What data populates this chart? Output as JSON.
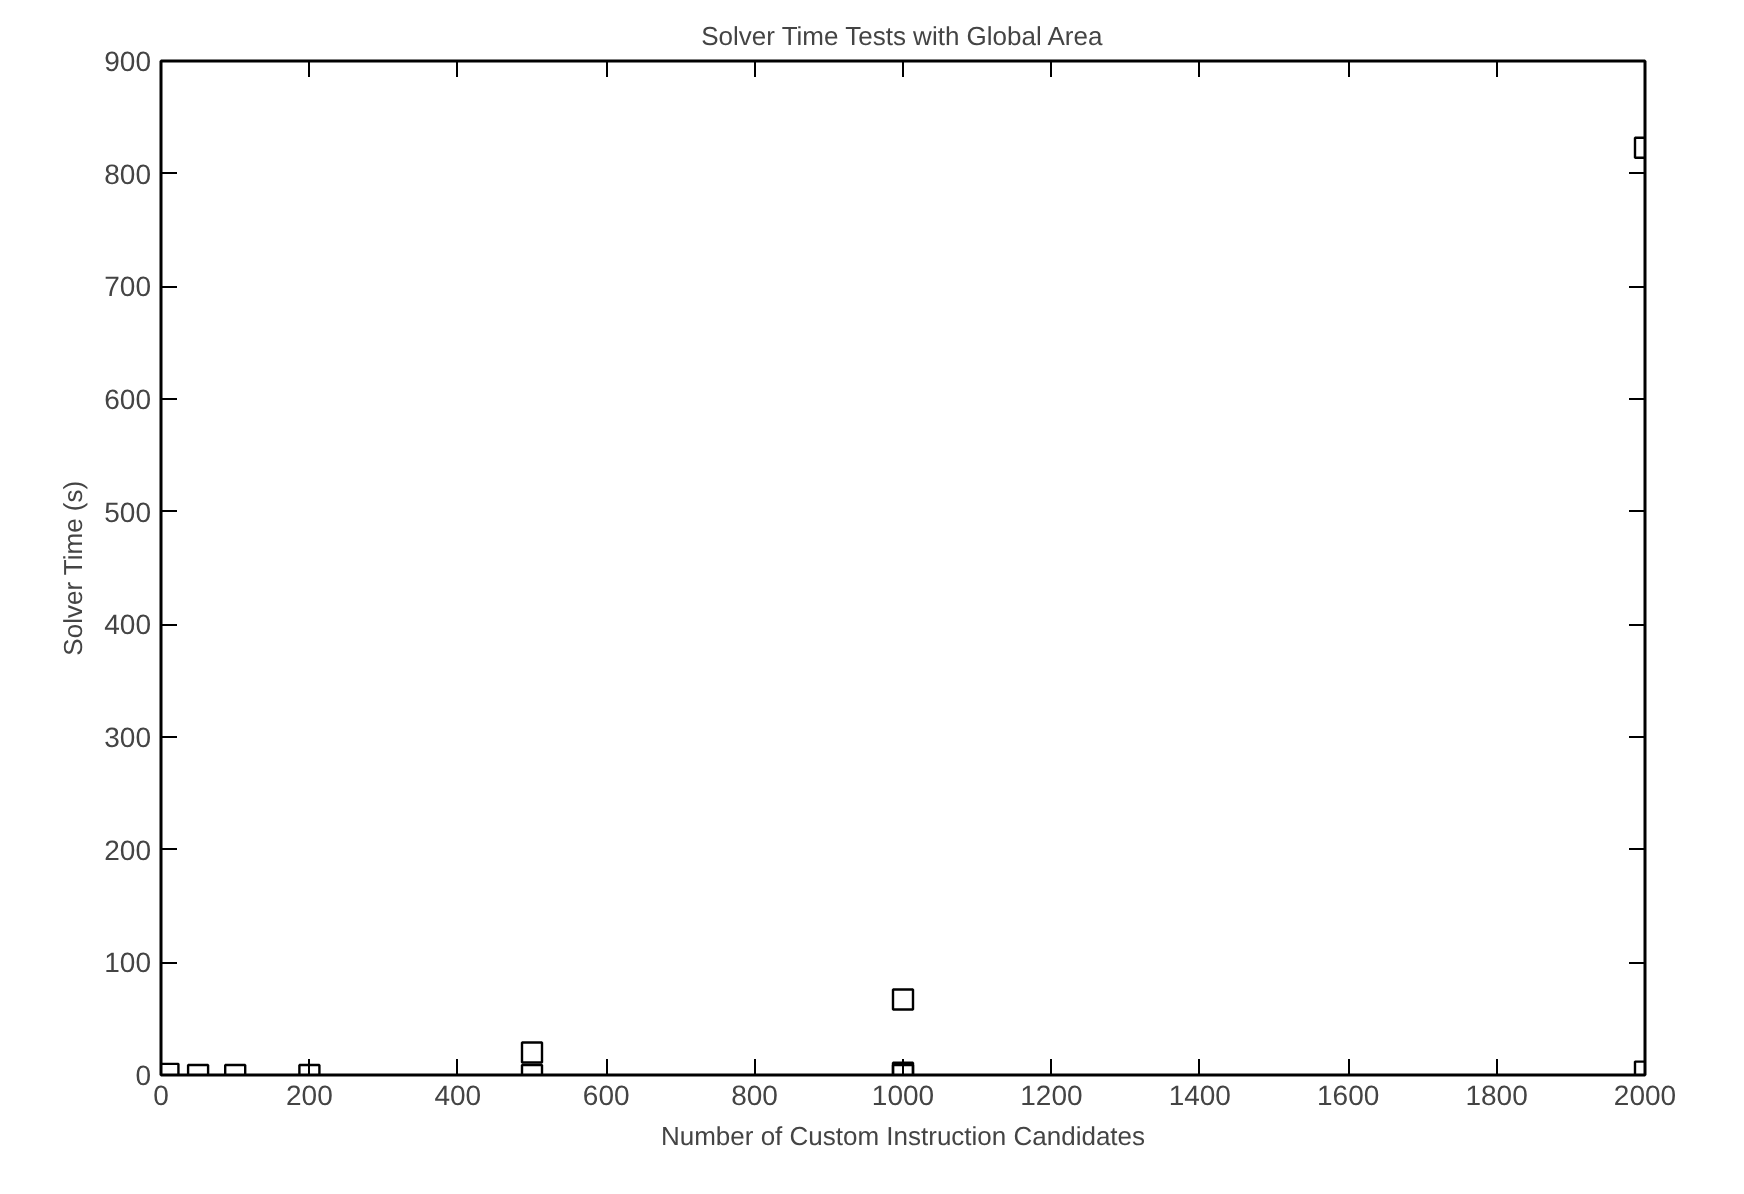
{
  "chart_data": {
    "type": "scatter",
    "title": "Solver Time Tests with Global Area",
    "xlabel": "Number of Custom Instruction Candidates",
    "ylabel": "Solver Time (s)",
    "x": [
      10,
      50,
      100,
      200,
      500,
      500,
      1000,
      1000,
      1000,
      2000,
      2000
    ],
    "series": [
      {
        "color": "#000000",
        "values": [
          1,
          0,
          0,
          0,
          20,
          0,
          67,
          2,
          0,
          823,
          3
        ]
      }
    ],
    "xlim": [
      0,
      2000
    ],
    "ylim": [
      0,
      900
    ],
    "xticks": [
      0,
      200,
      400,
      600,
      800,
      1000,
      1200,
      1400,
      1600,
      1800,
      2000
    ],
    "yticks": [
      0,
      100,
      200,
      300,
      400,
      500,
      600,
      700,
      800,
      900
    ],
    "marker": "square",
    "grid": false
  }
}
